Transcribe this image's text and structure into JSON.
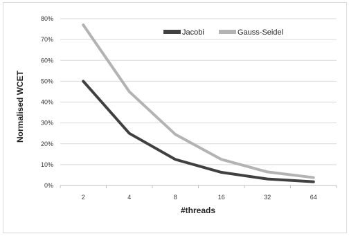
{
  "chart_data": {
    "type": "line",
    "title": "",
    "xlabel": "#threads",
    "ylabel": "Normalised WCET",
    "categories": [
      "2",
      "4",
      "8",
      "16",
      "32",
      "64"
    ],
    "ylim": [
      0,
      80
    ],
    "yticks": [
      "0%",
      "10%",
      "20%",
      "30%",
      "40%",
      "50%",
      "60%",
      "70%",
      "80%"
    ],
    "grid": true,
    "legend_position": "top-right",
    "series": [
      {
        "name": "Jacobi",
        "color": "#404040",
        "values": [
          50,
          25,
          12.5,
          6.3,
          3.1,
          1.8
        ]
      },
      {
        "name": "Gauss-Seidel",
        "color": "#b3b3b3",
        "values": [
          77,
          45,
          24.5,
          12.5,
          6.5,
          3.8
        ]
      }
    ]
  }
}
